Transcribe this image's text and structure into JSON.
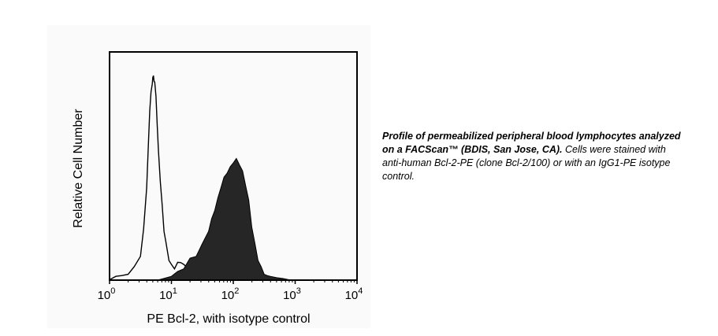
{
  "chart_data": {
    "type": "area",
    "title": "",
    "xlabel": "PE Bcl-2, with isotype control",
    "ylabel": "Relative Cell Number",
    "x_scale": "log",
    "xlim": [
      1,
      10000
    ],
    "ylim": [
      0,
      1
    ],
    "x_ticks": [
      {
        "value": 1,
        "base": "10",
        "exp": "0"
      },
      {
        "value": 10,
        "base": "10",
        "exp": "1"
      },
      {
        "value": 100,
        "base": "10",
        "exp": "2"
      },
      {
        "value": 1000,
        "base": "10",
        "exp": "3"
      },
      {
        "value": 10000,
        "base": "10",
        "exp": "4"
      }
    ],
    "grid": false,
    "legend": "none",
    "series": [
      {
        "style": "outline",
        "color": "#000000",
        "x": [
          1.0,
          1.26,
          1.58,
          2.0,
          2.51,
          3.16,
          3.55,
          3.98,
          4.27,
          4.47,
          4.68,
          4.9,
          5.01,
          5.13,
          5.25,
          5.37,
          5.62,
          5.89,
          6.17,
          6.61,
          7.08,
          7.59,
          8.13,
          9.12,
          10.0,
          11.2,
          12.6,
          14.1,
          15.8,
          20.0,
          25.1,
          31.6,
          39.8,
          50.1
        ],
        "y": [
          0.0,
          0.02,
          0.02,
          0.03,
          0.06,
          0.12,
          0.24,
          0.45,
          0.67,
          0.82,
          0.9,
          0.95,
          0.97,
          0.99,
          0.95,
          0.96,
          0.88,
          0.75,
          0.62,
          0.48,
          0.36,
          0.24,
          0.18,
          0.1,
          0.07,
          0.06,
          0.08,
          0.09,
          0.07,
          0.05,
          0.03,
          0.02,
          0.01,
          0.0
        ]
      },
      {
        "style": "filled",
        "color": "#262626",
        "x": [
          6.31,
          10.0,
          12.6,
          15.8,
          20.0,
          25.1,
          31.6,
          39.8,
          44.7,
          50.1,
          56.2,
          63.1,
          70.8,
          79.4,
          89.1,
          100.0,
          112.2,
          125.9,
          141.3,
          158.5,
          177.8,
          199.5,
          223.9,
          251.2,
          281.8,
          316.2,
          354.8,
          398.1,
          501.2,
          631.0,
          794.3,
          1000.0
        ],
        "y": [
          0.0,
          0.02,
          0.04,
          0.06,
          0.1,
          0.12,
          0.17,
          0.24,
          0.29,
          0.34,
          0.39,
          0.45,
          0.49,
          0.52,
          0.54,
          0.57,
          0.58,
          0.56,
          0.52,
          0.46,
          0.38,
          0.26,
          0.17,
          0.1,
          0.06,
          0.03,
          0.02,
          0.02,
          0.01,
          0.01,
          0.0,
          0.0
        ]
      }
    ]
  },
  "caption": {
    "bold_part": "Profile of permeabilized peripheral blood lymphocytes analyzed on a FACScan™ (BDIS, San Jose, CA).",
    "rest": " Cells were stained with anti-human Bcl-2-PE (clone Bcl-2/100) or with an IgG1-PE isotype control."
  }
}
